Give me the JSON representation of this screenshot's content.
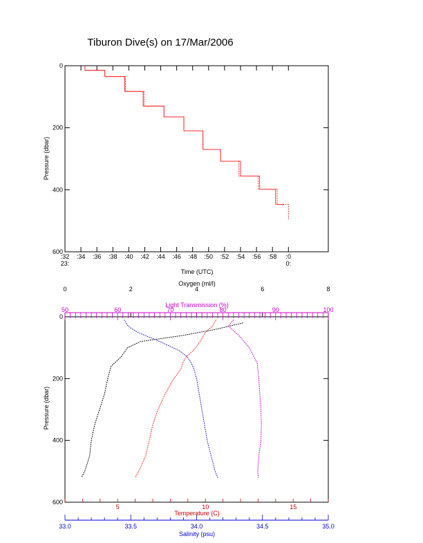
{
  "title": "Tiburon Dive(s) on 17/Mar/2006",
  "colors": {
    "depth": "#ff0000",
    "temperature": "#ff0000",
    "salinity": "#0000cc",
    "oxygen": "#000000",
    "light": "#cc00cc",
    "axis": "#000000"
  },
  "chart_data": [
    {
      "type": "line",
      "title": "Tiburon Dive(s) on 17/Mar/2006",
      "xlabel": "Time (UTC)",
      "ylabel": "Pressure (dbar)",
      "xlim": [
        -28,
        5
      ],
      "ylim": [
        600,
        0
      ],
      "x_ticks": [
        ":32",
        ":34",
        ":36",
        ":38",
        ":40",
        ":42",
        ":44",
        ":46",
        ":48",
        ":50",
        ":52",
        ":54",
        ":56",
        ":58",
        ":0"
      ],
      "x_tick_values": [
        -28,
        -26,
        -24,
        -22,
        -20,
        -18,
        -16,
        -14,
        -12,
        -10,
        -8,
        -6,
        -4,
        -2,
        0
      ],
      "x_hours": [
        "23:",
        "0:"
      ],
      "y_ticks": [
        0,
        200,
        400,
        600
      ],
      "series": [
        {
          "x": [
            -25.5,
            -25.5,
            -23.0,
            -23.0,
            -20.5,
            -20.5,
            -18.2,
            -18.2,
            -15.6,
            -15.6,
            -13.1,
            -13.1,
            -10.7,
            -10.7,
            -8.5,
            -8.5,
            -6.0,
            -6.0,
            -3.6,
            -3.6,
            -1.6,
            -1.6,
            -0.8,
            -0.6,
            -0.6
          ],
          "y": [
            0,
            15,
            15,
            35,
            35,
            83,
            83,
            130,
            130,
            165,
            165,
            210,
            210,
            270,
            270,
            308,
            308,
            356,
            356,
            398,
            398,
            447,
            447,
            450,
            450
          ]
        },
        {
          "x": [
            -25.5,
            -25.5,
            -23.0,
            -23.0,
            -20.4,
            -20.4,
            -18.1,
            -18.1,
            -15.6,
            -15.6,
            -13.1,
            -13.1,
            -10.7,
            -10.7,
            -8.5,
            -8.5,
            -6.2,
            -6.2,
            -3.8,
            -3.8,
            -1.4,
            -1.4,
            0.0,
            0.0
          ],
          "y": [
            0,
            15,
            15,
            35,
            35,
            83,
            83,
            130,
            130,
            165,
            165,
            210,
            210,
            270,
            270,
            308,
            308,
            356,
            356,
            398,
            398,
            447,
            447,
            495
          ]
        }
      ]
    },
    {
      "type": "scatter",
      "ylabel": "Pressure (dbar)",
      "ylim": [
        600,
        0
      ],
      "y_ticks": [
        0,
        200,
        400,
        600
      ],
      "axes": {
        "oxygen": {
          "label": "Oxygen (ml/l)",
          "range": [
            0,
            8
          ],
          "ticks": [
            0,
            2,
            4,
            6,
            8
          ]
        },
        "light": {
          "label": "Light Transmission (%)",
          "range": [
            50,
            100
          ],
          "ticks": [
            50,
            60,
            70,
            80,
            90,
            100
          ]
        },
        "temperature": {
          "label": "Temperature (C)",
          "range": [
            2,
            17
          ],
          "ticks": [
            5,
            10,
            15
          ]
        },
        "salinity": {
          "label": "Salinity (psu)",
          "range": [
            33.0,
            35.0
          ],
          "ticks": [
            "33.0",
            "33.5",
            "34.0",
            "34.5",
            "35.0"
          ]
        }
      },
      "series": [
        {
          "name": "Salinity",
          "axis": "salinity",
          "pressure": [
            10,
            30,
            50,
            80,
            110,
            130,
            150,
            170,
            200,
            250,
            300,
            350,
            400,
            450,
            500,
            520
          ],
          "values": [
            33.45,
            33.48,
            33.55,
            33.72,
            33.87,
            33.93,
            33.96,
            33.98,
            34.0,
            34.02,
            34.04,
            34.06,
            34.08,
            34.11,
            34.14,
            34.16
          ]
        },
        {
          "name": "Temperature",
          "axis": "temperature",
          "pressure": [
            10,
            30,
            50,
            80,
            110,
            130,
            150,
            170,
            200,
            250,
            300,
            350,
            400,
            450,
            500,
            520
          ],
          "values": [
            10.6,
            10.4,
            10.0,
            9.7,
            9.3,
            8.9,
            8.7,
            8.6,
            8.2,
            7.7,
            7.3,
            7.0,
            6.8,
            6.6,
            6.2,
            6.0
          ]
        },
        {
          "name": "Oxygen",
          "axis": "oxygen",
          "pressure": [
            20,
            40,
            60,
            80,
            100,
            130,
            160,
            200,
            250,
            300,
            350,
            400,
            450,
            500,
            520
          ],
          "values": [
            5.4,
            4.6,
            3.6,
            2.3,
            1.9,
            1.7,
            1.4,
            1.3,
            1.2,
            1.05,
            0.9,
            0.8,
            0.75,
            0.6,
            0.5
          ]
        },
        {
          "name": "Light Transmission",
          "axis": "light",
          "pressure": [
            10,
            30,
            60,
            100,
            150,
            200,
            250,
            300,
            350,
            400,
            450,
            500,
            520
          ],
          "values": [
            82,
            81,
            83,
            85,
            86.5,
            86.8,
            87,
            87.2,
            87.3,
            87.2,
            86.8,
            86.6,
            86.7
          ]
        }
      ]
    }
  ]
}
